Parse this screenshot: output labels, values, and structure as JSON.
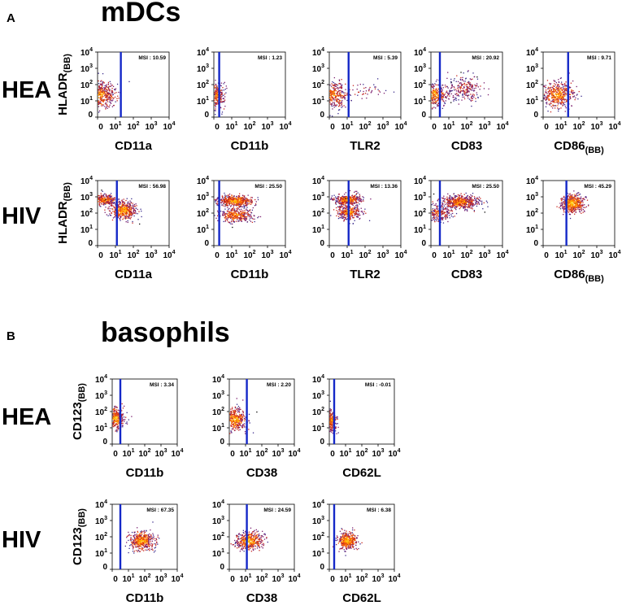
{
  "panels": [
    {
      "letter": "A",
      "title": "mDCs",
      "ylabel": "HLADR",
      "ylabel_sub": "(BB)",
      "rows": [
        {
          "label": "HEA",
          "plots": [
            {
              "xlabel": "CD11a",
              "xlabel_sub": "",
              "msi": "MSI : 10.59"
            },
            {
              "xlabel": "CD11b",
              "xlabel_sub": "",
              "msi": "MSI : 1.23"
            },
            {
              "xlabel": "TLR2",
              "xlabel_sub": "",
              "msi": "MSI : 5.39"
            },
            {
              "xlabel": "CD83",
              "xlabel_sub": "",
              "msi": "MSI : 20.92"
            },
            {
              "xlabel": "CD86",
              "xlabel_sub": "(BB)",
              "msi": "MSI : 9.71"
            }
          ]
        },
        {
          "label": "HIV",
          "plots": [
            {
              "xlabel": "CD11a",
              "xlabel_sub": "",
              "msi": "MSI : 56.98"
            },
            {
              "xlabel": "CD11b",
              "xlabel_sub": "",
              "msi": "MSI : 25.50"
            },
            {
              "xlabel": "TLR2",
              "xlabel_sub": "",
              "msi": "MSI : 13.36"
            },
            {
              "xlabel": "CD83",
              "xlabel_sub": "",
              "msi": "MSI : 25.50"
            },
            {
              "xlabel": "CD86",
              "xlabel_sub": "(BB)",
              "msi": "MSI : 45.29"
            }
          ]
        }
      ]
    },
    {
      "letter": "B",
      "title": "basophils",
      "ylabel": "CD123",
      "ylabel_sub": "(BB)",
      "rows": [
        {
          "label": "HEA",
          "plots": [
            {
              "xlabel": "CD11b",
              "xlabel_sub": "",
              "msi": "MSI : 3.34"
            },
            {
              "xlabel": "CD38",
              "xlabel_sub": "",
              "msi": "MSI : 2.20"
            },
            {
              "xlabel": "CD62L",
              "xlabel_sub": "",
              "msi": "MSI : -0.01"
            }
          ]
        },
        {
          "label": "HIV",
          "plots": [
            {
              "xlabel": "CD11b",
              "xlabel_sub": "",
              "msi": "MSI : 67.35"
            },
            {
              "xlabel": "CD38",
              "xlabel_sub": "",
              "msi": "MSI : 24.59"
            },
            {
              "xlabel": "CD62L",
              "xlabel_sub": "",
              "msi": "MSI : 6.38"
            }
          ]
        }
      ]
    }
  ],
  "axis_ticks": {
    "x": [
      "0",
      "10",
      "10",
      "10",
      "10"
    ],
    "x_exp": [
      "",
      "1",
      "2",
      "3",
      "4"
    ],
    "y": [
      "0",
      "10",
      "10",
      "10",
      "10"
    ],
    "y_exp": [
      "",
      "1",
      "2",
      "3",
      "4"
    ]
  },
  "colors": {
    "gate": "#1428c8",
    "cells": [
      "#000000",
      "#3a2a8c",
      "#7a1e6e",
      "#c8281e",
      "#ff6a00",
      "#ffb400",
      "#ffe640"
    ]
  },
  "chart_data": {
    "type": "scatter",
    "x_scale": "biexponential",
    "y_scale": "biexponential",
    "x_axis_ticks": [
      "0",
      "10^1",
      "10^2",
      "10^3",
      "10^4"
    ],
    "y_axis_ticks": [
      "0",
      "10^1",
      "10^2",
      "10^3",
      "10^4"
    ],
    "panels": [
      {
        "panel": "A",
        "population": "mDCs",
        "y_marker": "HLADR(BB)",
        "rows": [
          {
            "group": "HEA",
            "plots": [
              {
                "x_marker": "CD11a",
                "msi": 10.59,
                "gate_x": 20,
                "clusters": [
                  {
                    "center": [
                      2,
                      25
                    ],
                    "spread": [
                      0.9,
                      0.9
                    ],
                    "n": 450,
                    "heat": 0.55
                  }
                ]
              },
              {
                "x_marker": "CD11b",
                "msi": 1.23,
                "gate_x": 3,
                "clusters": [
                  {
                    "center": [
                      1.2,
                      22
                    ],
                    "spread": [
                      0.5,
                      0.9
                    ],
                    "n": 260,
                    "heat": 0.5
                  }
                ]
              },
              {
                "x_marker": "TLR2",
                "msi": 5.39,
                "gate_x": 12,
                "clusters": [
                  {
                    "center": [
                      2,
                      25
                    ],
                    "spread": [
                      0.9,
                      0.9
                    ],
                    "n": 350,
                    "heat": 0.55
                  },
                  {
                    "center": [
                      150,
                      40
                    ],
                    "spread": [
                      1.3,
                      0.6
                    ],
                    "n": 45,
                    "heat": 0.35
                  }
                ]
              },
              {
                "x_marker": "CD83",
                "msi": 20.92,
                "gate_x": 5,
                "clusters": [
                  {
                    "center": [
                      2,
                      25
                    ],
                    "spread": [
                      0.8,
                      0.8
                    ],
                    "n": 300,
                    "heat": 0.6
                  },
                  {
                    "center": [
                      80,
                      60
                    ],
                    "spread": [
                      1.1,
                      0.9
                    ],
                    "n": 240,
                    "heat": 0.35
                  }
                ]
              },
              {
                "x_marker": "CD86(BB)",
                "msi": 9.71,
                "gate_x": 25,
                "clusters": [
                  {
                    "center": [
                      8,
                      25
                    ],
                    "spread": [
                      1.0,
                      0.9
                    ],
                    "n": 450,
                    "heat": 0.6
                  }
                ]
              }
            ]
          },
          {
            "group": "HIV",
            "plots": [
              {
                "x_marker": "CD11a",
                "msi": 56.98,
                "gate_x": 12,
                "clusters": [
                  {
                    "center": [
                      4,
                      700
                    ],
                    "spread": [
                      0.8,
                      0.35
                    ],
                    "n": 300,
                    "heat": 0.55
                  },
                  {
                    "center": [
                      25,
                      150
                    ],
                    "spread": [
                      0.8,
                      0.6
                    ],
                    "n": 450,
                    "heat": 0.7
                  }
                ]
              },
              {
                "x_marker": "CD11b",
                "msi": 25.5,
                "gate_x": 3,
                "clusters": [
                  {
                    "center": [
                      15,
                      600
                    ],
                    "spread": [
                      1.1,
                      0.35
                    ],
                    "n": 500,
                    "heat": 0.7
                  },
                  {
                    "center": [
                      15,
                      80
                    ],
                    "spread": [
                      1.1,
                      0.5
                    ],
                    "n": 350,
                    "heat": 0.55
                  }
                ]
              },
              {
                "x_marker": "TLR2",
                "msi": 13.36,
                "gate_x": 12,
                "clusters": [
                  {
                    "center": [
                      10,
                      700
                    ],
                    "spread": [
                      0.8,
                      0.35
                    ],
                    "n": 400,
                    "heat": 0.65
                  },
                  {
                    "center": [
                      12,
                      120
                    ],
                    "spread": [
                      0.8,
                      0.5
                    ],
                    "n": 300,
                    "heat": 0.6
                  }
                ]
              },
              {
                "x_marker": "CD83",
                "msi": 25.5,
                "gate_x": 5,
                "clusters": [
                  {
                    "center": [
                      40,
                      500
                    ],
                    "spread": [
                      1.2,
                      0.45
                    ],
                    "n": 550,
                    "heat": 0.6
                  },
                  {
                    "center": [
                      4,
                      100
                    ],
                    "spread": [
                      0.9,
                      0.6
                    ],
                    "n": 250,
                    "heat": 0.45
                  }
                ]
              },
              {
                "x_marker": "CD86(BB)",
                "msi": 45.29,
                "gate_x": 20,
                "clusters": [
                  {
                    "center": [
                      40,
                      400
                    ],
                    "spread": [
                      0.7,
                      0.6
                    ],
                    "n": 550,
                    "heat": 0.75
                  }
                ]
              }
            ]
          }
        ]
      },
      {
        "panel": "B",
        "population": "basophils",
        "y_marker": "CD123(BB)",
        "rows": [
          {
            "group": "HEA",
            "plots": [
              {
                "x_marker": "CD11b",
                "msi": 3.34,
                "gate_x": 5,
                "clusters": [
                  {
                    "center": [
                      2,
                      40
                    ],
                    "spread": [
                      0.6,
                      0.8
                    ],
                    "n": 350,
                    "heat": 0.65
                  }
                ]
              },
              {
                "x_marker": "CD38",
                "msi": 2.2,
                "gate_x": 12,
                "clusters": [
                  {
                    "center": [
                      3,
                      35
                    ],
                    "spread": [
                      0.8,
                      0.8
                    ],
                    "n": 400,
                    "heat": 0.65
                  }
                ]
              },
              {
                "x_marker": "CD62L",
                "msi": -0.01,
                "gate_x": 3,
                "clusters": [
                  {
                    "center": [
                      1,
                      30
                    ],
                    "spread": [
                      0.35,
                      0.8
                    ],
                    "n": 250,
                    "heat": 0.6
                  }
                ]
              }
            ]
          },
          {
            "group": "HIV",
            "plots": [
              {
                "x_marker": "CD11b",
                "msi": 67.35,
                "gate_x": 5,
                "clusters": [
                  {
                    "center": [
                      60,
                      60
                    ],
                    "spread": [
                      0.8,
                      0.6
                    ],
                    "n": 450,
                    "heat": 0.7
                  }
                ]
              },
              {
                "x_marker": "CD38",
                "msi": 24.59,
                "gate_x": 12,
                "clusters": [
                  {
                    "center": [
                      15,
                      60
                    ],
                    "spread": [
                      0.9,
                      0.6
                    ],
                    "n": 450,
                    "heat": 0.7
                  }
                ]
              },
              {
                "x_marker": "CD62L",
                "msi": 6.38,
                "gate_x": 3,
                "clusters": [
                  {
                    "center": [
                      12,
                      60
                    ],
                    "spread": [
                      0.7,
                      0.6
                    ],
                    "n": 400,
                    "heat": 0.7
                  }
                ]
              }
            ]
          }
        ]
      }
    ]
  }
}
